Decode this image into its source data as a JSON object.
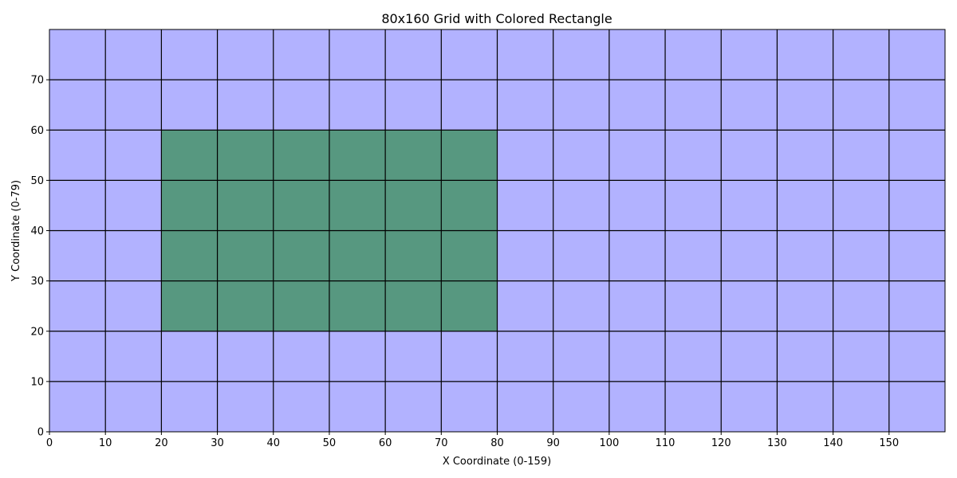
{
  "chart_data": {
    "type": "heatmap",
    "title": "80x160 Grid with Colored Rectangle",
    "xlabel": "X Coordinate (0-159)",
    "ylabel": "Y Coordinate (0-79)",
    "xlim": [
      0,
      160
    ],
    "ylim": [
      0,
      80
    ],
    "x_ticks": [
      "0",
      "10",
      "20",
      "30",
      "40",
      "50",
      "60",
      "70",
      "80",
      "90",
      "100",
      "110",
      "120",
      "130",
      "140",
      "150"
    ],
    "y_ticks": [
      "0",
      "10",
      "20",
      "30",
      "40",
      "50",
      "60",
      "70"
    ],
    "grid": true,
    "grid_spacing": 10,
    "grid_color": "#000000",
    "background_color": "#b2b2ff",
    "rectangle": {
      "x_range": [
        20,
        80
      ],
      "y_range": [
        20,
        60
      ],
      "color": "#579880"
    }
  }
}
